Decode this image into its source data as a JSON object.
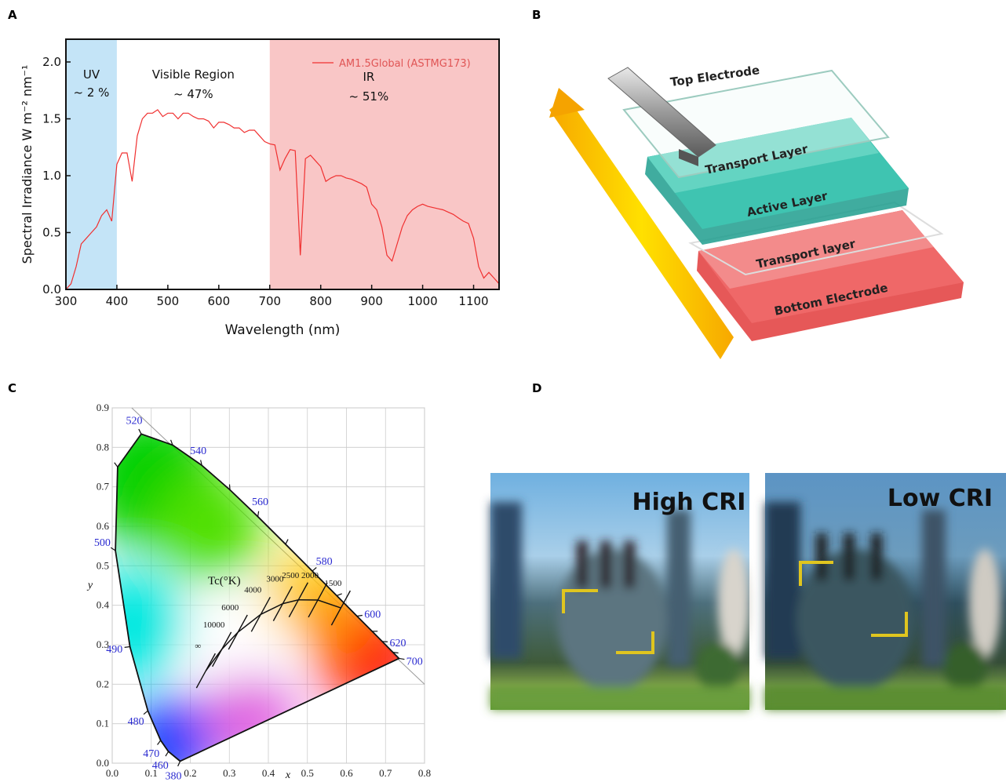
{
  "panels": [
    "A",
    "B",
    "C",
    "D"
  ],
  "chart_data": [
    {
      "type": "line",
      "xlabel": "Wavelength (nm)",
      "ylabel": "Spectral Irradiance W m⁻² nm⁻¹",
      "x": [
        300,
        310,
        320,
        330,
        340,
        350,
        360,
        370,
        380,
        390,
        400,
        410,
        420,
        430,
        440,
        450,
        460,
        470,
        480,
        490,
        500,
        510,
        520,
        530,
        540,
        550,
        560,
        570,
        580,
        590,
        600,
        610,
        620,
        630,
        640,
        650,
        660,
        670,
        680,
        690,
        700,
        710,
        720,
        730,
        740,
        750,
        760,
        770,
        780,
        790,
        800,
        810,
        820,
        830,
        840,
        850,
        860,
        870,
        880,
        890,
        900,
        910,
        920,
        930,
        940,
        950,
        960,
        970,
        980,
        990,
        1000,
        1010,
        1020,
        1030,
        1040,
        1050,
        1060,
        1070,
        1080,
        1090,
        1100,
        1110,
        1120,
        1130,
        1140,
        1150
      ],
      "series": [
        {
          "name": "AM1.5Global (ASTMG173)",
          "color": "#f03030",
          "values": [
            0,
            0.05,
            0.2,
            0.4,
            0.45,
            0.5,
            0.55,
            0.65,
            0.7,
            0.6,
            1.1,
            1.2,
            1.2,
            0.95,
            1.35,
            1.5,
            1.55,
            1.55,
            1.58,
            1.52,
            1.55,
            1.55,
            1.5,
            1.55,
            1.55,
            1.52,
            1.5,
            1.5,
            1.48,
            1.42,
            1.47,
            1.47,
            1.45,
            1.42,
            1.42,
            1.38,
            1.4,
            1.4,
            1.35,
            1.3,
            1.28,
            1.27,
            1.05,
            1.15,
            1.23,
            1.22,
            0.3,
            1.15,
            1.18,
            1.13,
            1.08,
            0.95,
            0.98,
            1.0,
            1.0,
            0.98,
            0.97,
            0.95,
            0.93,
            0.9,
            0.75,
            0.7,
            0.55,
            0.3,
            0.25,
            0.4,
            0.55,
            0.65,
            0.7,
            0.73,
            0.75,
            0.73,
            0.72,
            0.71,
            0.7,
            0.68,
            0.66,
            0.63,
            0.6,
            0.58,
            0.45,
            0.2,
            0.1,
            0.15,
            0.1,
            0.05
          ]
        }
      ],
      "xlim": [
        300,
        1150
      ],
      "ylim": [
        0,
        2.2
      ],
      "xticks": [
        300,
        400,
        500,
        600,
        700,
        800,
        900,
        1000,
        1100
      ],
      "yticks": [
        {
          "value": 0,
          "label": "0.0"
        },
        0.5,
        {
          "value": 1,
          "label": "1.0"
        },
        1.5,
        {
          "value": 2,
          "label": "2.0"
        }
      ],
      "regions": [
        {
          "name": "UV",
          "note": "~ 2 %",
          "xlim": [
            300,
            400
          ],
          "color": "#c4e4f7"
        },
        {
          "name": "Visible Region",
          "note": "~ 47%",
          "xlim": [
            400,
            700
          ],
          "color": "#ffffff"
        },
        {
          "name": "IR",
          "note": "~ 51%",
          "xlim": [
            700,
            1150
          ],
          "color": "#f9c6c6"
        }
      ],
      "legend": "upper right"
    },
    {
      "type": "chromaticity",
      "xlabel": "x",
      "ylabel": "y",
      "xlim": [
        0,
        0.8
      ],
      "ylim": [
        0,
        0.9
      ],
      "xticks": [
        {
          "value": 0,
          "label": "0.0"
        },
        0.1,
        0.2,
        0.3,
        0.4,
        0.5,
        0.6,
        0.7,
        0.8
      ],
      "yticks": [
        {
          "value": 0,
          "label": "0.0"
        },
        0.1,
        0.2,
        0.3,
        0.4,
        0.5,
        0.6,
        0.7,
        0.8,
        0.9
      ],
      "grid": true,
      "locus": {
        "wavelengths": [
          "380",
          "460",
          "470",
          "480",
          "490",
          "500",
          null,
          "520",
          null,
          "540",
          null,
          "560",
          null,
          "580",
          null,
          "600",
          null,
          "620",
          null,
          "700"
        ],
        "x": [
          0.1741,
          0.144,
          0.1241,
          0.0913,
          0.0454,
          0.0082,
          0.0139,
          0.0743,
          0.1547,
          0.2296,
          0.3016,
          0.3731,
          0.4441,
          0.5125,
          0.5752,
          0.627,
          0.6658,
          0.6915,
          0.719,
          0.7347
        ],
        "y": [
          0.005,
          0.0297,
          0.0578,
          0.1327,
          0.295,
          0.5384,
          0.7502,
          0.8338,
          0.8059,
          0.7543,
          0.6923,
          0.6245,
          0.5547,
          0.4866,
          0.4242,
          0.3725,
          0.334,
          0.3083,
          0.2809,
          0.2653
        ]
      },
      "planckian": {
        "title": "Tc(°K)",
        "labels": [
          "1500",
          "2000",
          "2500",
          "3000",
          "4000",
          "6000",
          "10000",
          "∞"
        ],
        "x": [
          0.5857,
          0.5267,
          0.477,
          0.4369,
          0.3805,
          0.3221,
          0.2807,
          0.2399
        ],
        "y": [
          0.3931,
          0.4133,
          0.4137,
          0.4041,
          0.3768,
          0.3318,
          0.2883,
          0.2342
        ]
      }
    }
  ],
  "diagram": {
    "labels": [
      "Top Electrode",
      "Transport Layer",
      "Active Layer",
      "Transport layer",
      "Bottom Electrode"
    ]
  },
  "photos": {
    "labels": [
      "High CRI",
      "Low CRI"
    ]
  }
}
